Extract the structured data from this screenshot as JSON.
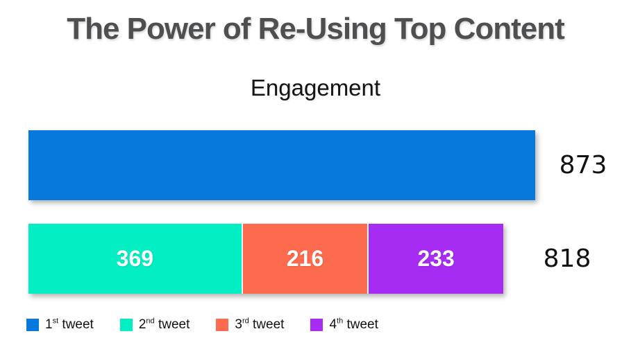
{
  "header": {
    "title": "The Power of Re-Using Top Content"
  },
  "colors": {
    "background": "#ffffff",
    "title_text": "#4e4f51",
    "chart_title_text": "#141414",
    "value_text": "#111111",
    "segment_label_text": "#ffffff",
    "tweet1": "#0779dc",
    "tweet2": "#03eec3",
    "tweet3": "#fc6b4e",
    "tweet4": "#a62cf3"
  },
  "chart_data": {
    "type": "bar",
    "variant": "horizontal-stacked",
    "title": "Engagement",
    "xlabel": "",
    "ylabel": "",
    "axis_max": 873,
    "grid": false,
    "legend_position": "bottom-left",
    "rows": [
      {
        "total": 873,
        "total_label": "873",
        "segments": [
          {
            "series": "1st tweet",
            "value": 873,
            "color": "#0779dc",
            "label": "",
            "show_label": false
          }
        ]
      },
      {
        "total": 818,
        "total_label": "818",
        "segments": [
          {
            "series": "2nd tweet",
            "value": 369,
            "color": "#03eec3",
            "label": "369",
            "show_label": true
          },
          {
            "series": "3rd tweet",
            "value": 216,
            "color": "#fc6b4e",
            "label": "216",
            "show_label": true
          },
          {
            "series": "4th tweet",
            "value": 233,
            "color": "#a62cf3",
            "label": "233",
            "show_label": true
          }
        ]
      }
    ],
    "legend": [
      {
        "num": "1",
        "ordinal": "st",
        "rest": " tweet",
        "color": "#0779dc"
      },
      {
        "num": "2",
        "ordinal": "nd",
        "rest": " tweet",
        "color": "#03eec3"
      },
      {
        "num": "3",
        "ordinal": "rd",
        "rest": " tweet",
        "color": "#fc6b4e"
      },
      {
        "num": "4",
        "ordinal": "th",
        "rest": " tweet",
        "color": "#a62cf3"
      }
    ]
  }
}
